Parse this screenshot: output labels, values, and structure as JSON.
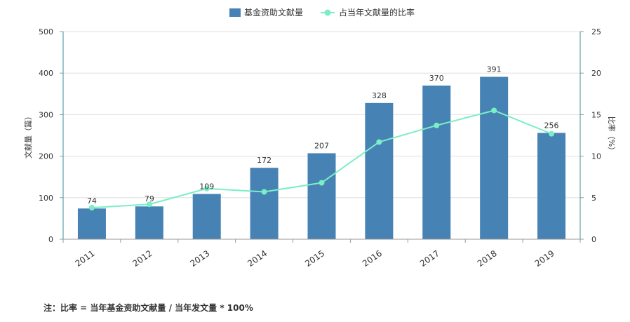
{
  "chart_data": {
    "type": "bar",
    "categories": [
      "2011",
      "2012",
      "2013",
      "2014",
      "2015",
      "2016",
      "2017",
      "2018",
      "2019"
    ],
    "series": [
      {
        "name": "基金资助文献量",
        "type": "bar",
        "axis": "left",
        "color": "#4682b4",
        "values": [
          74,
          79,
          109,
          172,
          207,
          328,
          370,
          391,
          256
        ]
      },
      {
        "name": "占当年文献量的比率",
        "type": "line",
        "axis": "right",
        "color": "#7beec5",
        "values": [
          3.8,
          4.2,
          6.1,
          5.7,
          6.8,
          11.7,
          13.7,
          15.5,
          12.7
        ]
      }
    ],
    "data_labels": [
      "74",
      "79",
      "109",
      "172",
      "207",
      "328",
      "370",
      "391",
      "256"
    ],
    "ylabel_left": "文献量（篇）",
    "ylabel_right": "比率（%）",
    "ylim_left": [
      0,
      500
    ],
    "ylim_right": [
      0,
      25
    ],
    "yticks_left": [
      "0",
      "100",
      "200",
      "300",
      "400",
      "500"
    ],
    "yticks_right": [
      "0",
      "5",
      "10",
      "15",
      "20",
      "25"
    ],
    "grid": true,
    "legend_position": "top-center"
  },
  "note": "注：比率 = 当年基金资助文献量 / 当年发文量 * 100%"
}
